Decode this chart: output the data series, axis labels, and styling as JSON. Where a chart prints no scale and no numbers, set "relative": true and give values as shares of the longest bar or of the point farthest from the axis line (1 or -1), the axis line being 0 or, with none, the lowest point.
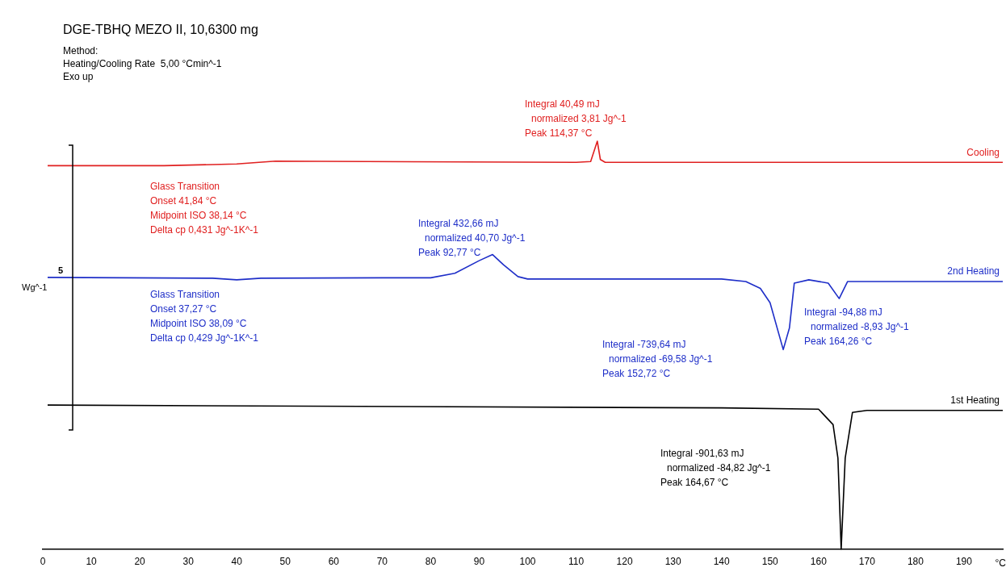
{
  "chart_data": {
    "type": "line",
    "relative": true,
    "title": "DGE-TBHQ MEZO II, 10,6300 mg",
    "subtitle": "Method:\nHeating/Cooling Rate  5,00 °Cmin^-1\nExo up",
    "xlabel": "°C",
    "ylabel": "Wg^-1",
    "xlim": [
      0,
      198
    ],
    "xticks": [
      0,
      10,
      20,
      30,
      40,
      50,
      60,
      70,
      80,
      90,
      100,
      110,
      120,
      130,
      140,
      150,
      160,
      170,
      180,
      190
    ],
    "legend": false,
    "series": [
      {
        "name": "Cooling",
        "color": "#e02020",
        "x": [
          1,
          25,
          40,
          48,
          110,
          113,
          114.37,
          115,
          116,
          198
        ],
        "values": [
          0.94,
          0.94,
          0.944,
          0.951,
          0.948,
          0.95,
          1.0,
          0.955,
          0.948,
          0.948
        ]
      },
      {
        "name": "2nd Heating",
        "color": "#1e2ec8",
        "x": [
          1,
          35,
          40,
          45,
          70,
          80,
          85,
          90,
          92.77,
          95,
          98,
          100,
          140,
          145,
          148,
          150,
          152.72,
          154,
          155,
          158,
          162,
          164.26,
          166,
          198
        ],
        "values": [
          0.666,
          0.664,
          0.66,
          0.664,
          0.665,
          0.665,
          0.676,
          0.707,
          0.722,
          0.697,
          0.668,
          0.662,
          0.662,
          0.656,
          0.639,
          0.604,
          0.489,
          0.542,
          0.652,
          0.66,
          0.652,
          0.614,
          0.656,
          0.656
        ]
      },
      {
        "name": "1st Heating",
        "color": "#000000",
        "x": [
          1,
          140,
          160,
          163,
          164,
          164.67,
          165.5,
          167,
          170,
          198
        ],
        "values": [
          0.353,
          0.346,
          0.343,
          0.305,
          0.223,
          0,
          0.223,
          0.335,
          0.34,
          0.34
        ]
      }
    ],
    "annotations": [
      "Integral 40,49 mJ",
      "normalized 3,81 Jg^-1",
      "Peak 114,37 °C",
      "Glass Transition",
      "Onset 41,84 °C",
      "Midpoint ISO 38,14 °C",
      "Delta cp 0,431 Jg^-1K^-1",
      "Integral 432,66 mJ",
      "normalized 40,70 Jg^-1",
      "Peak 92,77 °C",
      "Glass Transition",
      "Onset 37,27 °C",
      "Midpoint ISO 38,09 °C",
      "Delta cp 0,429 Jg^-1K^-1",
      "Integral -739,64 mJ",
      "normalized -69,58 Jg^-1",
      "Peak 152,72 °C",
      "Integral -94,88 mJ",
      "normalized -8,93 Jg^-1",
      "Peak 164,26 °C",
      "Integral -901,63 mJ",
      "normalized -84,82 Jg^-1",
      "Peak 164,67 °C",
      "5"
    ]
  }
}
